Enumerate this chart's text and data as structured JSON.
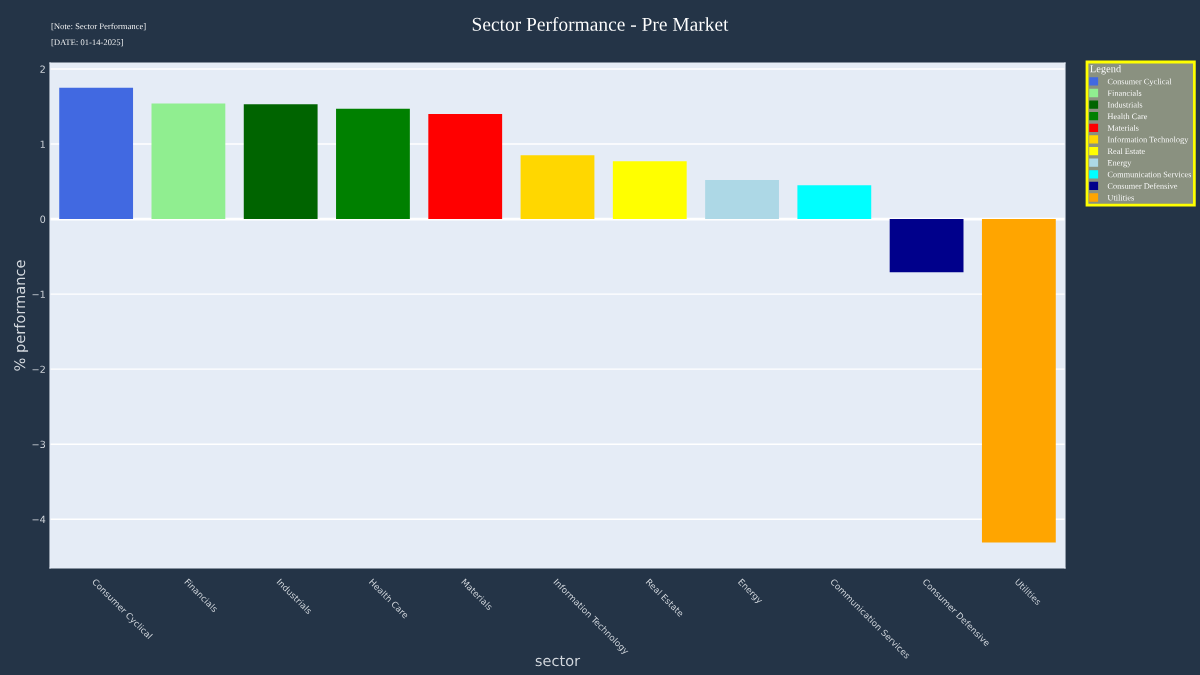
{
  "chart_data": {
    "type": "bar",
    "title": "Sector Performance - Pre Market",
    "xlabel": "sector",
    "ylabel": "% performance",
    "legend_title": "Legend",
    "annotations": [
      "[Note: Sector Performance]",
      "[DATE: 01-14-2025]"
    ],
    "categories": [
      "Consumer Cyclical",
      "Financials",
      "Industrials",
      "Health Care",
      "Materials",
      "Information Technology",
      "Real Estate",
      "Energy",
      "Communication Services",
      "Consumer Defensive",
      "Utilities"
    ],
    "series": [
      {
        "name": "Consumer Cyclical",
        "color": "#4169e1",
        "values": [
          1.75,
          null,
          null,
          null,
          null,
          null,
          null,
          null,
          null,
          null,
          null
        ]
      },
      {
        "name": "Financials",
        "color": "#90ee90",
        "values": [
          null,
          1.54,
          null,
          null,
          null,
          null,
          null,
          null,
          null,
          null,
          null
        ]
      },
      {
        "name": "Industrials",
        "color": "#006400",
        "values": [
          null,
          null,
          1.53,
          null,
          null,
          null,
          null,
          null,
          null,
          null,
          null
        ]
      },
      {
        "name": "Health Care",
        "color": "#008000",
        "values": [
          null,
          null,
          null,
          1.47,
          null,
          null,
          null,
          null,
          null,
          null,
          null
        ]
      },
      {
        "name": "Materials",
        "color": "#ff0000",
        "values": [
          null,
          null,
          null,
          null,
          1.4,
          null,
          null,
          null,
          null,
          null,
          null
        ]
      },
      {
        "name": "Information Technology",
        "color": "#ffd700",
        "values": [
          null,
          null,
          null,
          null,
          null,
          0.85,
          null,
          null,
          null,
          null,
          null
        ]
      },
      {
        "name": "Real Estate",
        "color": "#ffff00",
        "values": [
          null,
          null,
          null,
          null,
          null,
          null,
          0.77,
          null,
          null,
          null,
          null
        ]
      },
      {
        "name": "Energy",
        "color": "#add8e6",
        "values": [
          null,
          null,
          null,
          null,
          null,
          null,
          null,
          0.52,
          null,
          null,
          null
        ]
      },
      {
        "name": "Communication Services",
        "color": "#00ffff",
        "values": [
          null,
          null,
          null,
          null,
          null,
          null,
          null,
          null,
          0.45,
          null,
          null
        ]
      },
      {
        "name": "Consumer Defensive",
        "color": "#00008b",
        "values": [
          null,
          null,
          null,
          null,
          null,
          null,
          null,
          null,
          null,
          -0.71,
          null
        ]
      },
      {
        "name": "Utilities",
        "color": "#ffa500",
        "values": [
          null,
          null,
          null,
          null,
          null,
          null,
          null,
          null,
          null,
          null,
          -4.31
        ]
      }
    ],
    "stacked": true,
    "ylim": [
      -4.65,
      2.08
    ],
    "yticks": [
      {
        "value": -4,
        "label": "−4"
      },
      {
        "value": -3,
        "label": "−3"
      },
      {
        "value": -2,
        "label": "−2"
      },
      {
        "value": -1,
        "label": "−1"
      },
      0,
      1,
      2
    ],
    "grid": "y",
    "legend": "right"
  }
}
